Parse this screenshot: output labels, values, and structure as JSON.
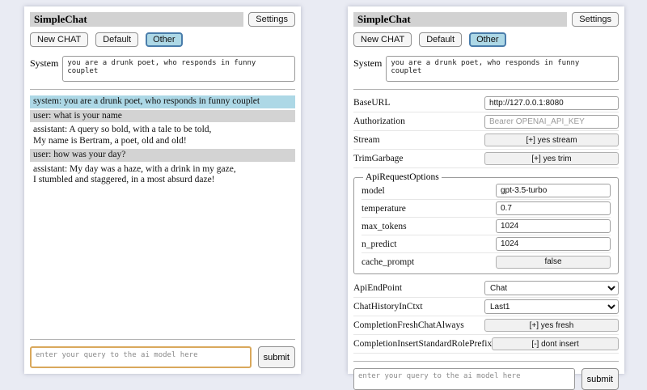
{
  "colors": {
    "page_bg": "#e9ebf3",
    "titlebar_bg": "#d2d2d2",
    "active_session_bg": "#add8e6",
    "active_session_border": "#4a7dab",
    "msg_system_bg": "#add8e6",
    "msg_user_bg": "#d3d3d3",
    "focused_query_border": "#d9a85c"
  },
  "left": {
    "header": {
      "title": "SimpleChat",
      "settings_label": "Settings"
    },
    "session_bar": {
      "buttons": [
        {
          "label": "New CHAT",
          "active": false
        },
        {
          "label": "Default",
          "active": false
        },
        {
          "label": "Other",
          "active": true
        }
      ]
    },
    "system": {
      "label": "System",
      "value": "you are a drunk poet, who responds in funny couplet"
    },
    "messages": [
      {
        "role": "system",
        "text": "system: you are a drunk poet, who responds in funny couplet"
      },
      {
        "role": "user",
        "text": "user: what is your name"
      },
      {
        "role": "assistant",
        "text": "assistant: A query so bold, with a tale to be told,\nMy name is Bertram, a poet, old and old!"
      },
      {
        "role": "user",
        "text": "user: how was your day?"
      },
      {
        "role": "assistant",
        "text": "assistant: My day was a haze, with a drink in my gaze,\nI stumbled and staggered, in a most absurd daze!"
      }
    ],
    "query": {
      "placeholder": "enter your query to the ai model here",
      "submit_label": "submit"
    }
  },
  "right": {
    "header": {
      "title": "SimpleChat",
      "settings_label": "Settings"
    },
    "session_bar": {
      "buttons": [
        {
          "label": "New CHAT",
          "active": false
        },
        {
          "label": "Default",
          "active": false
        },
        {
          "label": "Other",
          "active": true
        }
      ]
    },
    "system": {
      "label": "System",
      "value": "you are a drunk poet, who responds in funny couplet"
    },
    "settings": {
      "rows": [
        {
          "label": "BaseURL",
          "type": "input",
          "value": "http://127.0.0.1:8080"
        },
        {
          "label": "Authorization",
          "type": "input",
          "placeholder": "Bearer OPENAI_API_KEY"
        },
        {
          "label": "Stream",
          "type": "button",
          "value": "[+] yes stream"
        },
        {
          "label": "TrimGarbage",
          "type": "button",
          "value": "[+] yes trim"
        }
      ],
      "group": {
        "legend": "ApiRequestOptions",
        "rows": [
          {
            "label": "model",
            "type": "input",
            "value": "gpt-3.5-turbo"
          },
          {
            "label": "temperature",
            "type": "input",
            "value": "0.7"
          },
          {
            "label": "max_tokens",
            "type": "input",
            "value": "1024"
          },
          {
            "label": "n_predict",
            "type": "input",
            "value": "1024"
          },
          {
            "label": "cache_prompt",
            "type": "button",
            "value": "false"
          }
        ]
      },
      "rows2": [
        {
          "label": "ApiEndPoint",
          "type": "select",
          "value": "Chat"
        },
        {
          "label": "ChatHistoryInCtxt",
          "type": "select",
          "value": "Last1"
        },
        {
          "label": "CompletionFreshChatAlways",
          "type": "button",
          "value": "[+] yes fresh"
        },
        {
          "label": "CompletionInsertStandardRolePrefix",
          "type": "button",
          "value": "[-] dont insert"
        }
      ]
    },
    "query": {
      "placeholder": "enter your query to the ai model here",
      "submit_label": "submit"
    }
  }
}
